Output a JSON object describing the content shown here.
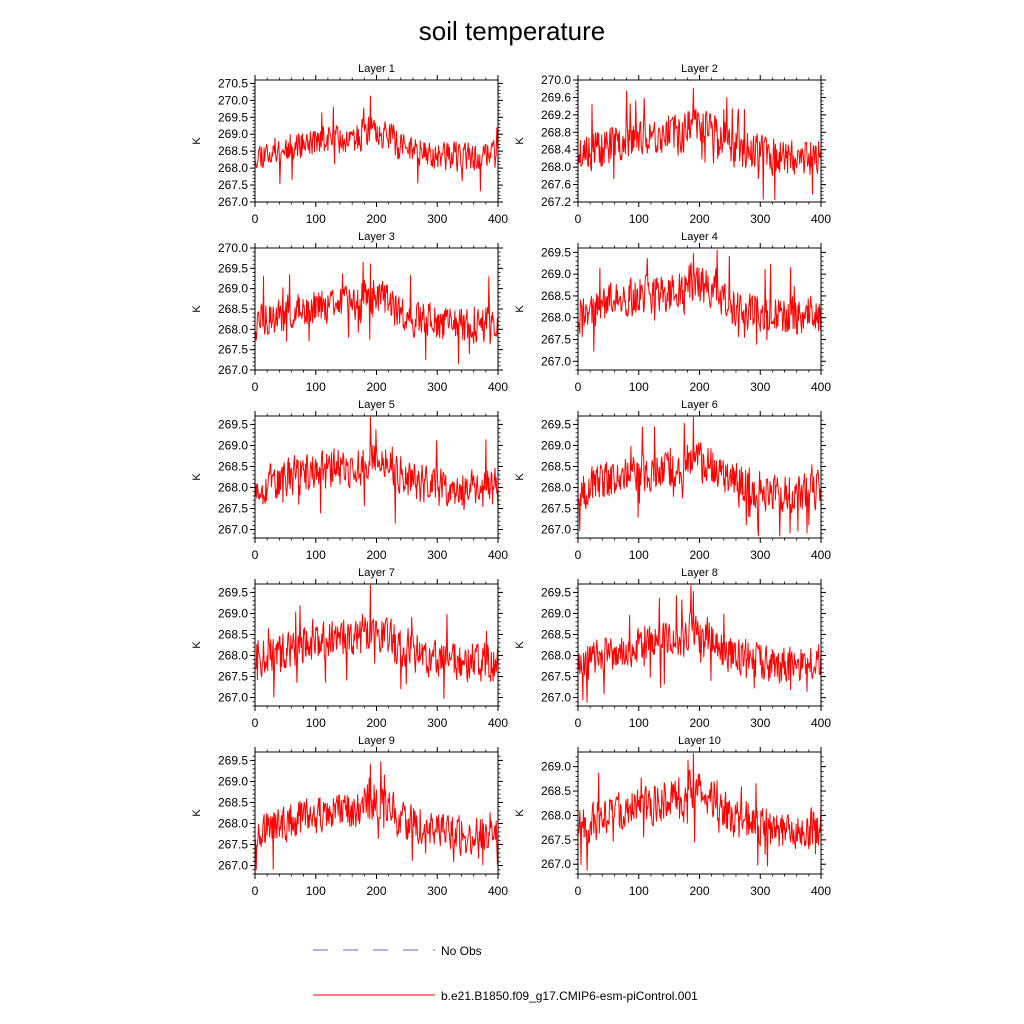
{
  "title": "soil temperature",
  "colors": {
    "model": "#ff0000",
    "obs": "#6666cc",
    "axis": "#000000"
  },
  "legend": {
    "entries": [
      {
        "label": "No Obs",
        "style": "dashed"
      },
      {
        "label": "b.e21.B1850.f09_g17.CMIP6-esm-piControl.001",
        "style": "solid"
      }
    ]
  },
  "chart_data": [
    {
      "type": "line",
      "title": "Layer 1",
      "ylabel": "K",
      "xlabel": "",
      "xlim": [
        0,
        400
      ],
      "ylim": [
        267.0,
        270.6
      ],
      "yticks": [
        267.0,
        267.5,
        268.0,
        268.5,
        269.0,
        269.5,
        270.0,
        270.5
      ],
      "xticks": [
        0,
        100,
        200,
        300,
        400
      ],
      "ytick_labels": [
        "267.0",
        "267.5",
        "268.0",
        "268.5",
        "269.0",
        "269.5",
        "270.0",
        "270.5"
      ],
      "series": [
        {
          "name": "b.e21.B1850.f09_g17.CMIP6-esm-piControl.001",
          "n_points": 400,
          "mean": 268.6,
          "amp": 0.4,
          "seed": 11
        }
      ]
    },
    {
      "type": "line",
      "title": "Layer 2",
      "ylabel": "K",
      "xlabel": "",
      "xlim": [
        0,
        400
      ],
      "ylim": [
        267.2,
        270.0
      ],
      "yticks": [
        267.2,
        267.6,
        268.0,
        268.4,
        268.8,
        269.2,
        269.6,
        270.0
      ],
      "xticks": [
        0,
        100,
        200,
        300,
        400
      ],
      "ytick_labels": [
        "267.2",
        "267.6",
        "268.0",
        "268.4",
        "268.8",
        "269.2",
        "269.6",
        "270.0"
      ],
      "series": [
        {
          "name": "b.e21.B1850.f09_g17.CMIP6-esm-piControl.001",
          "n_points": 400,
          "mean": 268.5,
          "amp": 0.42,
          "seed": 23
        }
      ]
    },
    {
      "type": "line",
      "title": "Layer 3",
      "ylabel": "K",
      "xlabel": "",
      "xlim": [
        0,
        400
      ],
      "ylim": [
        267.0,
        270.0
      ],
      "yticks": [
        267.0,
        267.5,
        268.0,
        268.5,
        269.0,
        269.5,
        270.0
      ],
      "xticks": [
        0,
        100,
        200,
        300,
        400
      ],
      "ytick_labels": [
        "267.0",
        "267.5",
        "268.0",
        "268.5",
        "269.0",
        "269.5",
        "270.0"
      ],
      "series": [
        {
          "name": "b.e21.B1850.f09_g17.CMIP6-esm-piControl.001",
          "n_points": 400,
          "mean": 268.35,
          "amp": 0.42,
          "seed": 37
        }
      ]
    },
    {
      "type": "line",
      "title": "Layer 4",
      "ylabel": "K",
      "xlabel": "",
      "xlim": [
        0,
        400
      ],
      "ylim": [
        266.8,
        269.6
      ],
      "yticks": [
        267.0,
        267.5,
        268.0,
        268.5,
        269.0,
        269.5
      ],
      "xticks": [
        0,
        100,
        200,
        300,
        400
      ],
      "ytick_labels": [
        "267.0",
        "267.5",
        "268.0",
        "268.5",
        "269.0",
        "269.5"
      ],
      "series": [
        {
          "name": "b.e21.B1850.f09_g17.CMIP6-esm-piControl.001",
          "n_points": 400,
          "mean": 268.3,
          "amp": 0.43,
          "seed": 41
        }
      ]
    },
    {
      "type": "line",
      "title": "Layer 5",
      "ylabel": "K",
      "xlabel": "",
      "xlim": [
        0,
        400
      ],
      "ylim": [
        266.8,
        269.7
      ],
      "yticks": [
        267.0,
        267.5,
        268.0,
        268.5,
        269.0,
        269.5
      ],
      "xticks": [
        0,
        100,
        200,
        300,
        400
      ],
      "ytick_labels": [
        "267.0",
        "267.5",
        "268.0",
        "268.5",
        "269.0",
        "269.5"
      ],
      "series": [
        {
          "name": "b.e21.B1850.f09_g17.CMIP6-esm-piControl.001",
          "n_points": 400,
          "mean": 268.2,
          "amp": 0.44,
          "seed": 53
        }
      ]
    },
    {
      "type": "line",
      "title": "Layer 6",
      "ylabel": "K",
      "xlabel": "",
      "xlim": [
        0,
        400
      ],
      "ylim": [
        266.8,
        269.7
      ],
      "yticks": [
        267.0,
        267.5,
        268.0,
        268.5,
        269.0,
        269.5
      ],
      "xticks": [
        0,
        100,
        200,
        300,
        400
      ],
      "ytick_labels": [
        "267.0",
        "267.5",
        "268.0",
        "268.5",
        "269.0",
        "269.5"
      ],
      "series": [
        {
          "name": "b.e21.B1850.f09_g17.CMIP6-esm-piControl.001",
          "n_points": 400,
          "mean": 268.15,
          "amp": 0.43,
          "seed": 67
        }
      ]
    },
    {
      "type": "line",
      "title": "Layer 7",
      "ylabel": "K",
      "xlabel": "",
      "xlim": [
        0,
        400
      ],
      "ylim": [
        266.8,
        269.7
      ],
      "yticks": [
        267.0,
        267.5,
        268.0,
        268.5,
        269.0,
        269.5
      ],
      "xticks": [
        0,
        100,
        200,
        300,
        400
      ],
      "ytick_labels": [
        "267.0",
        "267.5",
        "268.0",
        "268.5",
        "269.0",
        "269.5"
      ],
      "series": [
        {
          "name": "b.e21.B1850.f09_g17.CMIP6-esm-piControl.001",
          "n_points": 400,
          "mean": 268.1,
          "amp": 0.43,
          "seed": 71
        }
      ]
    },
    {
      "type": "line",
      "title": "Layer 8",
      "ylabel": "K",
      "xlabel": "",
      "xlim": [
        0,
        400
      ],
      "ylim": [
        266.8,
        269.7
      ],
      "yticks": [
        267.0,
        267.5,
        268.0,
        268.5,
        269.0,
        269.5
      ],
      "xticks": [
        0,
        100,
        200,
        300,
        400
      ],
      "ytick_labels": [
        "267.0",
        "267.5",
        "268.0",
        "268.5",
        "269.0",
        "269.5"
      ],
      "series": [
        {
          "name": "b.e21.B1850.f09_g17.CMIP6-esm-piControl.001",
          "n_points": 400,
          "mean": 268.05,
          "amp": 0.42,
          "seed": 83
        }
      ]
    },
    {
      "type": "line",
      "title": "Layer 9",
      "ylabel": "K",
      "xlabel": "",
      "xlim": [
        0,
        400
      ],
      "ylim": [
        266.8,
        269.7
      ],
      "yticks": [
        267.0,
        267.5,
        268.0,
        268.5,
        269.0,
        269.5
      ],
      "xticks": [
        0,
        100,
        200,
        300,
        400
      ],
      "ytick_labels": [
        "267.0",
        "267.5",
        "268.0",
        "268.5",
        "269.0",
        "269.5"
      ],
      "series": [
        {
          "name": "b.e21.B1850.f09_g17.CMIP6-esm-piControl.001",
          "n_points": 400,
          "mean": 268.0,
          "amp": 0.42,
          "seed": 97
        }
      ]
    },
    {
      "type": "line",
      "title": "Layer 10",
      "ylabel": "K",
      "xlabel": "",
      "xlim": [
        0,
        400
      ],
      "ylim": [
        266.8,
        269.3
      ],
      "yticks": [
        267.0,
        267.5,
        268.0,
        268.5,
        269.0
      ],
      "xticks": [
        0,
        100,
        200,
        300,
        400
      ],
      "ytick_labels": [
        "267.0",
        "267.5",
        "268.0",
        "268.5",
        "269.0"
      ],
      "series": [
        {
          "name": "b.e21.B1850.f09_g17.CMIP6-esm-piControl.001",
          "n_points": 400,
          "mean": 268.0,
          "amp": 0.4,
          "seed": 101
        }
      ]
    }
  ]
}
